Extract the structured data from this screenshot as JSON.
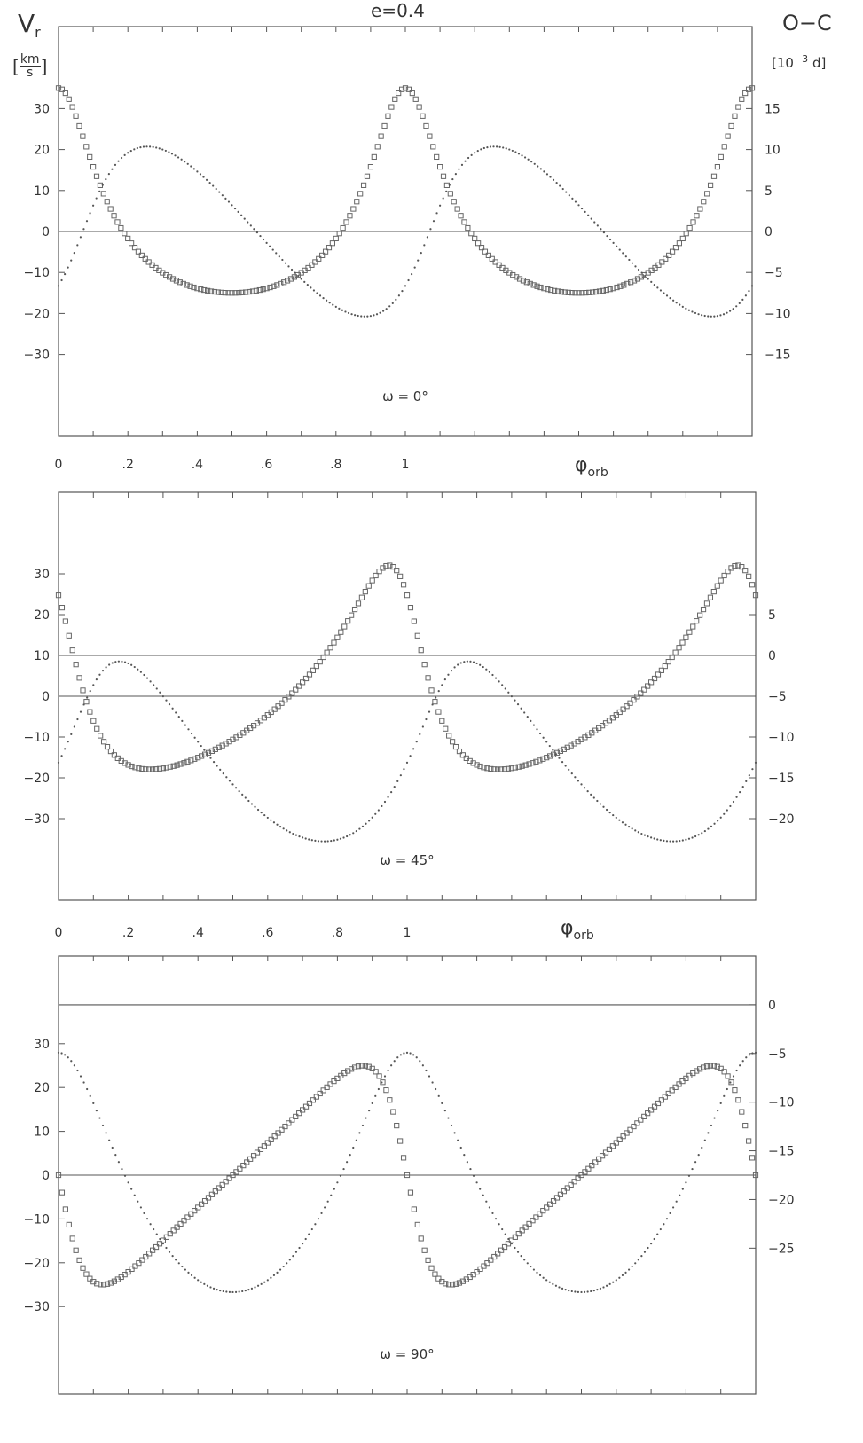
{
  "figure": {
    "title": "e=0.4",
    "left_axis_label": "V",
    "left_axis_label_sub": "r",
    "left_unit_open": "[",
    "left_unit_num": "km",
    "left_unit_den": "s",
    "left_unit_close": "]",
    "right_axis_label": "O−C",
    "right_unit_prefix": "[10",
    "right_unit_exp": "−3",
    "right_unit_suffix": " d]",
    "x_label": "φ",
    "x_label_sub": "orb"
  },
  "chart_data": [
    {
      "type": "scatter",
      "annotation": "ω = 0°",
      "x_range": [
        0,
        2
      ],
      "x_tick_labels": [
        "0",
        ".2",
        ".4",
        ".6",
        ".8",
        "1"
      ],
      "left_axis": {
        "ylim": [
          -50,
          50
        ],
        "ticks": [
          30,
          20,
          10,
          0,
          -10,
          -20,
          -30
        ]
      },
      "right_axis": {
        "ylim": [
          -25,
          25
        ],
        "ticks": [
          15,
          10,
          5,
          0,
          -5,
          -10,
          -15
        ]
      },
      "series": [
        {
          "role": "radial-velocity",
          "marker": "open-square",
          "axis": "left",
          "eccentricity": 0.4,
          "omega_deg": 0,
          "K": 25,
          "gamma": 0,
          "phase_offset": 0
        },
        {
          "role": "O-C",
          "marker": "dot",
          "axis": "right",
          "eccentricity": 0.4,
          "omega_deg": 0,
          "amplitude": 11.3,
          "phase_offset": 0.07
        }
      ],
      "zero_lines": {
        "left": 0
      }
    },
    {
      "type": "scatter",
      "annotation": "ω = 45°",
      "x_range": [
        0,
        2
      ],
      "x_tick_labels": [
        "0",
        ".2",
        ".4",
        ".6",
        ".8",
        "1"
      ],
      "left_axis": {
        "ylim": [
          -50,
          50
        ],
        "ticks": [
          30,
          20,
          10,
          0,
          -10,
          -20,
          -30
        ]
      },
      "right_axis": {
        "ylim": [
          -30,
          20
        ],
        "ticks": [
          5,
          0,
          -5,
          -10,
          -15,
          -20
        ]
      },
      "series": [
        {
          "role": "radial-velocity",
          "marker": "open-square",
          "axis": "left",
          "eccentricity": 0.4,
          "omega_deg": 45,
          "K": 25,
          "gamma": 0,
          "phase_offset": 0.0
        },
        {
          "role": "O-C",
          "marker": "dot",
          "axis": "right",
          "eccentricity": 0.4,
          "omega_deg": 45,
          "amplitude": 11.5,
          "phase_offset": 0.1,
          "baseline": -8.5
        }
      ],
      "zero_lines": {
        "left": 0,
        "right": 0
      }
    },
    {
      "type": "scatter",
      "annotation": "ω = 90°",
      "x_range": [
        0,
        2
      ],
      "x_tick_labels": [],
      "left_axis": {
        "ylim": [
          -50,
          50
        ],
        "ticks": [
          30,
          20,
          10,
          0,
          -10,
          -20,
          -30
        ]
      },
      "right_axis": {
        "ylim": [
          -40,
          5
        ],
        "ticks": [
          0,
          -5,
          -10,
          -15,
          -20,
          -25
        ]
      },
      "series": [
        {
          "role": "radial-velocity",
          "marker": "open-square",
          "axis": "left",
          "eccentricity": 0.4,
          "omega_deg": 90,
          "K": 25,
          "gamma": 0,
          "phase_offset": 0.0
        },
        {
          "role": "O-C",
          "marker": "dot",
          "axis": "right",
          "eccentricity": 0.4,
          "omega_deg": 90,
          "amplitude": 12.3,
          "phase_offset": 0.0,
          "baseline": -12.3
        }
      ],
      "zero_lines": {
        "left": 0,
        "right": 0
      }
    }
  ]
}
